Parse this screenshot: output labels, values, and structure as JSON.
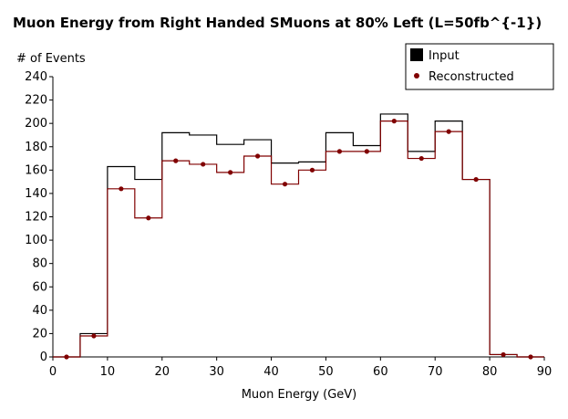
{
  "chart_data": {
    "type": "histogram",
    "title": "Muon Energy from Right Handed SMuons at 80% Left (L=50fb^{-1})",
    "xlabel": "Muon Energy (GeV)",
    "ylabel": "# of Events",
    "xlim": [
      0,
      90
    ],
    "ylim": [
      0,
      240
    ],
    "xticks": [
      0,
      10,
      20,
      30,
      40,
      50,
      60,
      70,
      80,
      90
    ],
    "yticks": [
      0,
      20,
      40,
      60,
      80,
      100,
      120,
      140,
      160,
      180,
      200,
      220,
      240
    ],
    "bin_edges": [
      0,
      5,
      10,
      15,
      20,
      25,
      30,
      35,
      40,
      45,
      50,
      55,
      60,
      65,
      70,
      75,
      80,
      85,
      90
    ],
    "legend_position": "top-right",
    "series": [
      {
        "name": "Input",
        "color": "#000000",
        "style": "step",
        "values": [
          0,
          20,
          163,
          152,
          192,
          190,
          182,
          186,
          166,
          167,
          192,
          181,
          208,
          176,
          202,
          152,
          2,
          0
        ]
      },
      {
        "name": "Reconstructed",
        "color": "#800000",
        "style": "step-with-markers",
        "values": [
          0,
          18,
          144,
          119,
          168,
          165,
          158,
          172,
          148,
          160,
          176,
          176,
          202,
          170,
          193,
          152,
          2,
          0
        ]
      }
    ]
  }
}
